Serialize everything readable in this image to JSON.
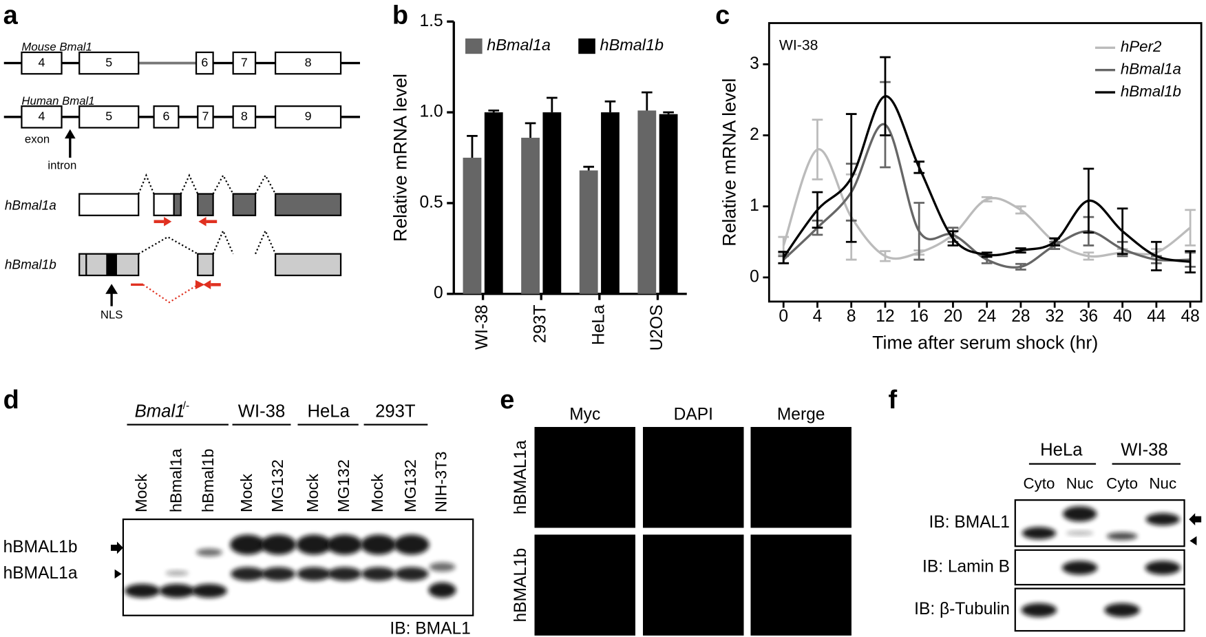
{
  "panel_labels": [
    "a",
    "b",
    "c",
    "d",
    "e",
    "f"
  ],
  "gene_structure": {
    "mouse_label": "Mouse Bmal1",
    "mouse_exons": [
      "4",
      "5",
      "6",
      "7",
      "8"
    ],
    "human_label": "Human Bmal1",
    "human_exons": [
      "4",
      "5",
      "6",
      "7",
      "8",
      "9"
    ],
    "exon_label": "exon",
    "intron_label": "intron",
    "isoforms": [
      "hBmal1a",
      "hBmal1b"
    ],
    "nls_label": "NLS"
  },
  "chart_data": [
    {
      "type": "bar",
      "ylabel": "Relative mRNA level",
      "categories": [
        "WI-38",
        "293T",
        "HeLa",
        "U2OS"
      ],
      "series": [
        {
          "name": "hBmal1a",
          "color": "#666666",
          "values": [
            0.75,
            0.86,
            0.68,
            1.01
          ],
          "errors": [
            0.12,
            0.08,
            0.02,
            0.1
          ]
        },
        {
          "name": "hBmal1b",
          "color": "#000000",
          "values": [
            1.0,
            1.0,
            1.0,
            0.99
          ],
          "errors": [
            0.01,
            0.08,
            0.06,
            0.01
          ]
        }
      ],
      "ylim": [
        0,
        1.5
      ],
      "yticks": [
        0,
        0.5,
        {
          "value": 1,
          "label": "1.0"
        },
        1.5
      ],
      "legend": "top-left"
    },
    {
      "type": "line",
      "annotation": "WI-38",
      "xlabel": "Time after serum shock (hr)",
      "ylabel": "Relative mRNA level",
      "x": [
        0,
        4,
        8,
        12,
        16,
        20,
        24,
        28,
        32,
        36,
        40,
        44,
        48
      ],
      "series": [
        {
          "name": "hPer2",
          "color": "#bbbbbb",
          "values": [
            0.45,
            1.8,
            0.85,
            0.3,
            0.35,
            0.6,
            1.1,
            0.95,
            0.5,
            0.3,
            0.35,
            0.35,
            0.7
          ],
          "errors": [
            0.12,
            0.42,
            0.6,
            0.07,
            0.03,
            0.05,
            0.03,
            0.05,
            0.05,
            0.05,
            0.05,
            0.05,
            0.25
          ]
        },
        {
          "name": "hBmal1a",
          "color": "#666666",
          "values": [
            0.25,
            0.7,
            1.2,
            2.15,
            0.65,
            0.6,
            0.25,
            0.15,
            0.45,
            0.65,
            0.4,
            0.25,
            0.25
          ],
          "errors": [
            0.05,
            0.1,
            0.4,
            0.6,
            0.4,
            0.1,
            0.05,
            0.04,
            0.05,
            0.2,
            0.1,
            0.05,
            0.1
          ]
        },
        {
          "name": "hBmal1b",
          "color": "#000000",
          "values": [
            0.28,
            0.95,
            1.4,
            2.55,
            1.55,
            0.55,
            0.32,
            0.38,
            0.5,
            1.08,
            0.65,
            0.3,
            0.22
          ],
          "errors": [
            0.08,
            0.25,
            0.9,
            0.55,
            0.08,
            0.1,
            0.03,
            0.03,
            0.05,
            0.45,
            0.32,
            0.2,
            0.15
          ]
        }
      ],
      "xlim": [
        -1.7,
        49.3
      ],
      "xticks": [
        0,
        4,
        8,
        12,
        16,
        20,
        24,
        28,
        32,
        36,
        40,
        44,
        48
      ],
      "ylim": [
        -0.34,
        3.58
      ],
      "yticks": [
        0,
        1,
        2,
        3
      ],
      "legend": "top-right"
    }
  ],
  "western_blot": {
    "genotype": "Bmal1",
    "genotype_superscript": "-/-",
    "groups": [
      "WI-38",
      "HeLa",
      "293T"
    ],
    "lanes": [
      "Mock",
      "hBmal1a",
      "hBmal1b",
      "Mock",
      "MG132",
      "Mock",
      "MG132",
      "Mock",
      "MG132",
      "NIH-3T3"
    ],
    "band_labels": [
      "hBMAL1b",
      "hBMAL1a"
    ],
    "antibody": "IB: BMAL1"
  },
  "imaging": {
    "columns": [
      "Myc",
      "DAPI",
      "Merge"
    ],
    "rows": [
      "hBMAL1a",
      "hBMAL1b"
    ]
  },
  "fractionation": {
    "cells": [
      "HeLa",
      "WI-38"
    ],
    "fractions": [
      "Cyto",
      "Nuc",
      "Cyto",
      "Nuc"
    ],
    "blots": [
      "IB: BMAL1",
      "IB: Lamin B",
      "IB: β-Tubulin"
    ]
  }
}
